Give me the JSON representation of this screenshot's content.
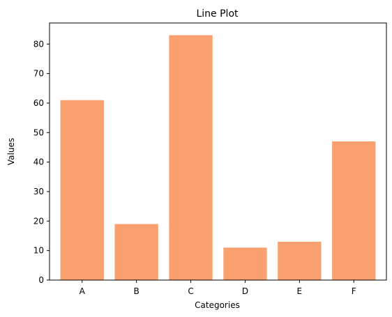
{
  "chart_data": {
    "type": "bar",
    "title": "Line Plot",
    "xlabel": "Categories",
    "ylabel": "Values",
    "categories": [
      "A",
      "B",
      "C",
      "D",
      "E",
      "F"
    ],
    "values": [
      61,
      19,
      83,
      11,
      13,
      47
    ],
    "ylim": [
      0,
      87.15
    ],
    "yticks": [
      "0",
      "10",
      "20",
      "30",
      "40",
      "50",
      "60",
      "70",
      "80"
    ],
    "bar_color": "#f9a06e",
    "grid": false,
    "legend": "none"
  }
}
